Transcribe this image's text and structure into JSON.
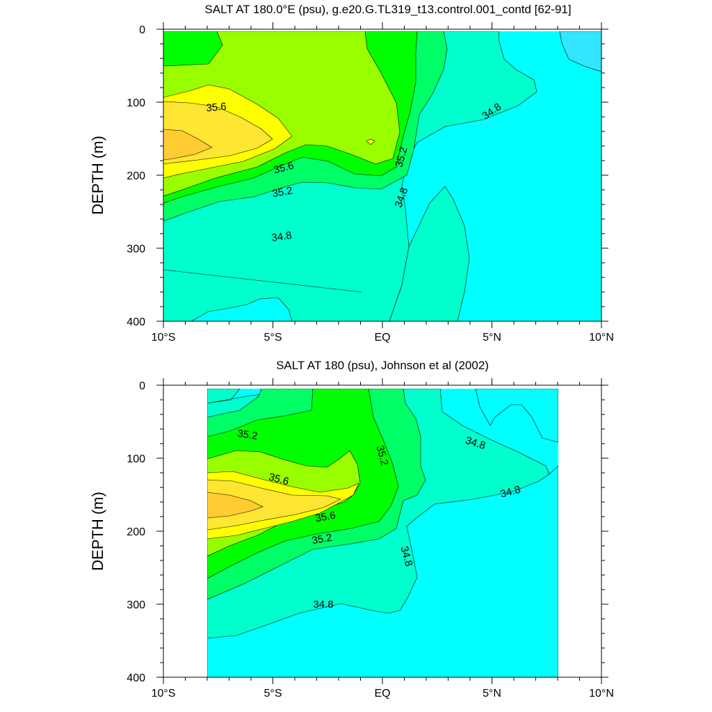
{
  "chart_data": [
    {
      "type": "contour",
      "title": "SALT AT 180.0°E (psu), g.e20.G.TL319_t13.control.001_contd [62-91]",
      "ylabel": "DEPTH (m)",
      "xlim": [
        -10,
        10
      ],
      "ylim": [
        400,
        0
      ],
      "x_ticks": [
        {
          "value": -10,
          "label": "10°S"
        },
        {
          "value": -5,
          "label": "5°S"
        },
        {
          "value": 0,
          "label": "EQ"
        },
        {
          "value": 5,
          "label": "5°N"
        },
        {
          "value": 10,
          "label": "10°N"
        }
      ],
      "y_ticks": [
        0,
        100,
        200,
        300,
        400
      ],
      "contour_levels": [
        34.6,
        34.8,
        35.0,
        35.2,
        35.4,
        35.6,
        35.8
      ],
      "contour_labels": [
        {
          "text": "35.6",
          "x": -7.7,
          "y": 102
        },
        {
          "text": "35.6",
          "x": -4.6,
          "y": 183
        },
        {
          "text": "35.2",
          "x": -4.6,
          "y": 218
        },
        {
          "text": "34.8",
          "x": -4.5,
          "y": 282
        },
        {
          "text": "35.2",
          "x": 0.9,
          "y": 170
        },
        {
          "text": "34.8",
          "x": 0.9,
          "y": 228
        },
        {
          "text": "34.8",
          "x": 5.0,
          "y": 112
        }
      ],
      "field_peak": {
        "value": 35.8,
        "x": -10,
        "y": 160
      }
    },
    {
      "type": "contour",
      "title": "SALT AT 180 (psu), Johnson et al (2002)",
      "ylabel": "DEPTH (m)",
      "xlim": [
        -10,
        10
      ],
      "ylim": [
        400,
        0
      ],
      "data_x_range": [
        -8,
        8
      ],
      "x_ticks": [
        {
          "value": -10,
          "label": "10°S"
        },
        {
          "value": -5,
          "label": "5°S"
        },
        {
          "value": 0,
          "label": "EQ"
        },
        {
          "value": 5,
          "label": "5°N"
        },
        {
          "value": 10,
          "label": "10°N"
        }
      ],
      "y_ticks": [
        0,
        100,
        200,
        300,
        400
      ],
      "contour_levels": [
        34.6,
        34.8,
        35.0,
        35.2,
        35.4,
        35.6,
        35.8
      ],
      "contour_labels": [
        {
          "text": "35.2",
          "x": -6.1,
          "y": 64
        },
        {
          "text": "35.6",
          "x": -4.5,
          "y": 128
        },
        {
          "text": "35.6",
          "x": -2.5,
          "y": 180
        },
        {
          "text": "35.2",
          "x": -2.7,
          "y": 200
        },
        {
          "text": "35.2",
          "x": 0.1,
          "y": 95
        },
        {
          "text": "34.8",
          "x": 1.2,
          "y": 236
        },
        {
          "text": "34.8",
          "x": 4.3,
          "y": 73
        },
        {
          "text": "34.8",
          "x": 5.8,
          "y": 140
        },
        {
          "text": "34.8",
          "x": -2.5,
          "y": 298
        }
      ],
      "field_peak": {
        "value": 35.8,
        "x": -8,
        "y": 160
      }
    }
  ]
}
